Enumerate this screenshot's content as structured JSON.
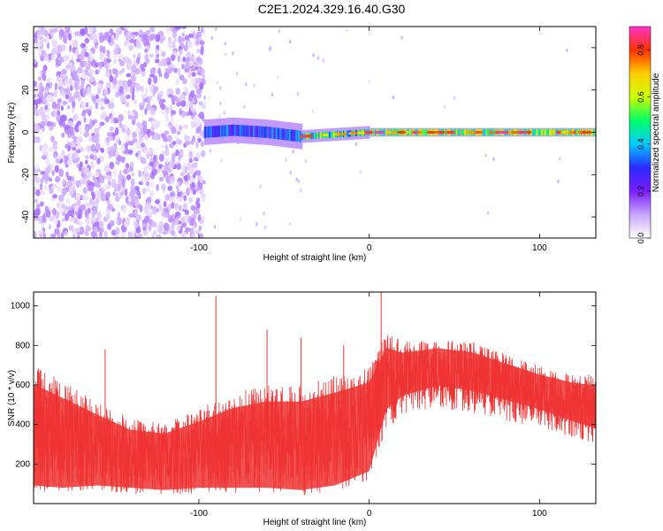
{
  "title": "C2E1.2024.329.16.40.G30",
  "chart_data": [
    {
      "type": "heatmap",
      "title": "C2E1.2024.329.16.40.G30",
      "xlabel": "Height of straight line (km)",
      "ylabel": "Frequency (Hz)",
      "xlim": [
        -197,
        133
      ],
      "ylim": [
        -50,
        50
      ],
      "x_ticks": [
        -100,
        0,
        100
      ],
      "x_tick_labels": [
        "-100",
        "0",
        "100"
      ],
      "y_ticks": [
        -40,
        -20,
        0,
        20,
        40
      ],
      "y_tick_labels": [
        "-40",
        "-20",
        "0",
        "20",
        "40"
      ],
      "colorbar": {
        "label": "Normalized spectral amplitude",
        "range": [
          0,
          0.9
        ],
        "ticks": [
          0.0,
          0.2,
          0.4,
          0.6,
          0.8
        ],
        "tick_labels": [
          "0.0",
          "0.2",
          "0.4",
          "0.6",
          "0.8"
        ],
        "colors": [
          "#ffffff",
          "#c9a6ff",
          "#7a1cff",
          "#2a2aff",
          "#00ccff",
          "#00ff66",
          "#ccff00",
          "#ffcc00",
          "#ff3300",
          "#ff33cc"
        ]
      },
      "grid": false,
      "regions": [
        {
          "x": [
            -197,
            -97
          ],
          "freq_band": [
            -50,
            50
          ],
          "amplitude": 0.12,
          "description": "broadband noise"
        },
        {
          "x": [
            -97,
            -40
          ],
          "freq_band": [
            -6,
            6
          ],
          "amplitude": 0.3
        },
        {
          "x": [
            -40,
            0
          ],
          "freq_band": [
            -3,
            3
          ],
          "amplitude": 0.45
        },
        {
          "x": [
            0,
            133
          ],
          "freq_band": [
            -2,
            2
          ],
          "amplitude": 0.55
        }
      ],
      "peak_line": {
        "x": [
          -97,
          -80,
          -60,
          -40,
          -20,
          0,
          5,
          20,
          50,
          80,
          110,
          133
        ],
        "freq": [
          0,
          1,
          0,
          -2,
          -1,
          0,
          0,
          0,
          0,
          0,
          0,
          0
        ]
      }
    },
    {
      "type": "line",
      "xlabel": "Height of straight line (km)",
      "ylabel": "SNR (10 * v/v)",
      "xlim": [
        -197,
        133
      ],
      "ylim": [
        0,
        1070
      ],
      "x_ticks": [
        -100,
        0,
        100
      ],
      "x_tick_labels": [
        "-100",
        "0",
        "100"
      ],
      "y_ticks": [
        200,
        400,
        600,
        800,
        1000
      ],
      "y_tick_labels": [
        "200",
        "400",
        "600",
        "800",
        "1000"
      ],
      "color": "#ee3333",
      "grid": false,
      "series": [
        {
          "x": [
            -197,
            -180,
            -160,
            -140,
            -120,
            -100,
            -80,
            -60,
            -40,
            -20,
            0,
            10,
            20,
            40,
            60,
            80,
            100,
            120,
            133
          ],
          "y_low": [
            60,
            50,
            60,
            50,
            40,
            50,
            50,
            50,
            40,
            60,
            120,
            380,
            440,
            480,
            460,
            420,
            380,
            330,
            300
          ],
          "y_high": [
            700,
            620,
            520,
            430,
            410,
            480,
            560,
            600,
            600,
            650,
            700,
            860,
            820,
            840,
            820,
            760,
            700,
            660,
            650
          ],
          "y_mean": [
            280,
            260,
            240,
            210,
            210,
            250,
            280,
            300,
            300,
            330,
            380,
            600,
            620,
            650,
            620,
            580,
            540,
            500,
            480
          ]
        }
      ],
      "spikes": [
        {
          "x": -155,
          "y": 780
        },
        {
          "x": -90,
          "y": 1050
        },
        {
          "x": -60,
          "y": 880
        },
        {
          "x": -40,
          "y": 840
        },
        {
          "x": -15,
          "y": 800
        },
        {
          "x": 7,
          "y": 1070
        },
        {
          "x": 27,
          "y": 720
        }
      ]
    }
  ]
}
